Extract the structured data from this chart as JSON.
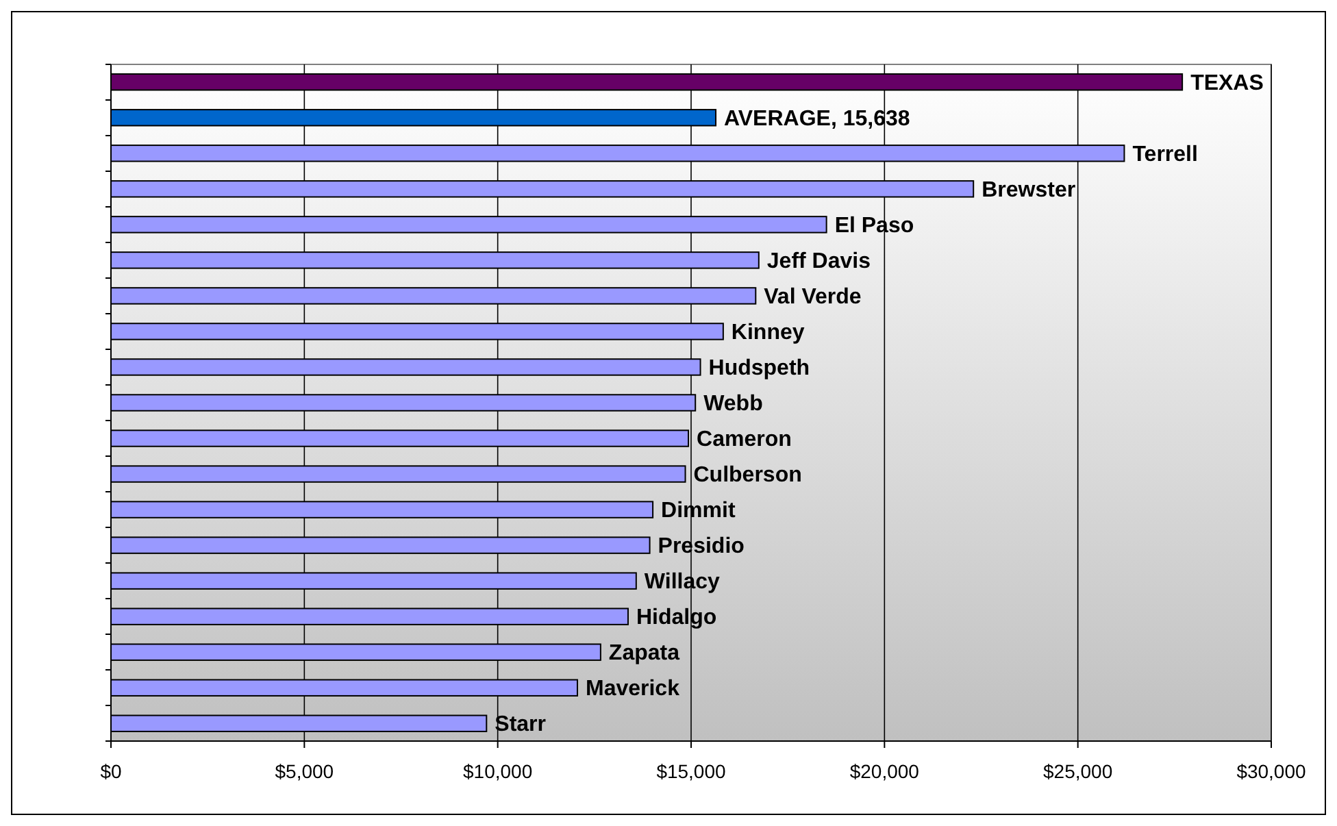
{
  "chart_data": {
    "type": "bar",
    "orientation": "horizontal",
    "categories": [
      "TEXAS",
      "AVERAGE, 15,638",
      "Terrell",
      "Brewster",
      "El Paso",
      "Jeff Davis",
      "Val Verde",
      "Kinney",
      "Hudspeth",
      "Webb",
      "Cameron",
      "Culberson",
      "Dimmit",
      "Presidio",
      "Willacy",
      "Hidalgo",
      "Zapata",
      "Maverick",
      "Starr"
    ],
    "values": [
      27700,
      15638,
      26200,
      22300,
      18500,
      16750,
      16670,
      15830,
      15240,
      15110,
      14930,
      14850,
      14010,
      13930,
      13580,
      13370,
      12660,
      12060,
      9710
    ],
    "colors": [
      "#660066",
      "#0066cc",
      "#9999ff",
      "#9999ff",
      "#9999ff",
      "#9999ff",
      "#9999ff",
      "#9999ff",
      "#9999ff",
      "#9999ff",
      "#9999ff",
      "#9999ff",
      "#9999ff",
      "#9999ff",
      "#9999ff",
      "#9999ff",
      "#9999ff",
      "#9999ff",
      "#9999ff"
    ],
    "xlim": [
      0,
      30000
    ],
    "xticks": [
      {
        "value": 0,
        "label": "$0"
      },
      {
        "value": 5000,
        "label": "$5,000"
      },
      {
        "value": 10000,
        "label": "$10,000"
      },
      {
        "value": 15000,
        "label": "$15,000"
      },
      {
        "value": 20000,
        "label": "$20,000"
      },
      {
        "value": 25000,
        "label": "$25,000"
      },
      {
        "value": 30000,
        "label": "$30,000"
      }
    ],
    "grid": "x"
  }
}
